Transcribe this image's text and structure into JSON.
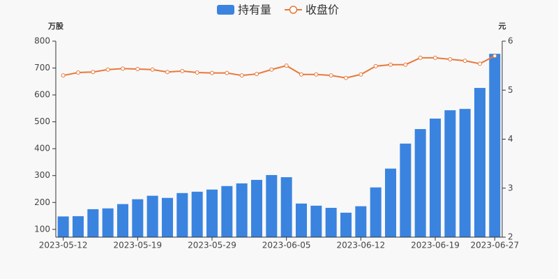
{
  "chart_data": {
    "type": "bar-line",
    "y_label": "万股",
    "y2_label": "元",
    "categories": [
      "2023-05-12",
      null,
      null,
      null,
      null,
      "2023-05-19",
      null,
      null,
      null,
      null,
      "2023-05-29",
      null,
      null,
      null,
      null,
      "2023-06-05",
      null,
      null,
      null,
      null,
      "2023-06-12",
      null,
      null,
      null,
      null,
      "2023-06-19",
      null,
      null,
      null,
      "2023-06-27"
    ],
    "series": [
      {
        "name": "持有量",
        "type": "bar",
        "color": "#3a84e0",
        "axis": "y",
        "values": [
          148,
          149,
          175,
          178,
          194,
          212,
          225,
          217,
          235,
          240,
          248,
          261,
          271,
          284,
          302,
          294,
          196,
          188,
          180,
          162,
          186,
          256,
          326,
          419,
          473,
          512,
          543,
          548,
          626,
          753
        ]
      },
      {
        "name": "收盘价",
        "type": "line",
        "color": "#e8793a",
        "axis": "y2",
        "values": [
          5.3,
          5.36,
          5.37,
          5.42,
          5.44,
          5.43,
          5.42,
          5.37,
          5.39,
          5.36,
          5.35,
          5.35,
          5.3,
          5.33,
          5.42,
          5.5,
          5.32,
          5.32,
          5.3,
          5.25,
          5.32,
          5.49,
          5.52,
          5.52,
          5.66,
          5.66,
          5.63,
          5.6,
          5.54,
          5.7
        ]
      }
    ],
    "ylim": [
      71,
      800
    ],
    "yticks": [
      100,
      200,
      300,
      400,
      500,
      600,
      700,
      800
    ],
    "y2lim": [
      2,
      6
    ],
    "y2ticks": [
      2,
      3,
      4,
      5,
      6
    ],
    "grid": false
  }
}
